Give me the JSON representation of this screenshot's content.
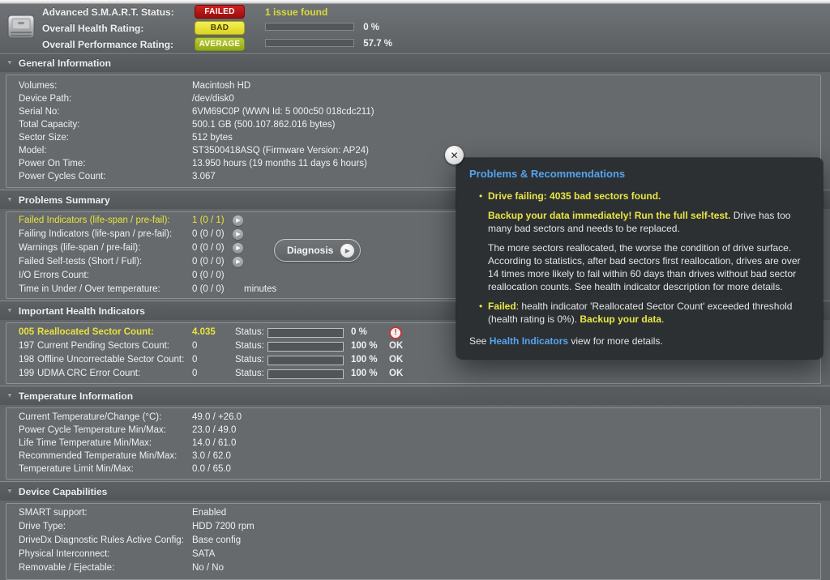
{
  "colors": {
    "failed_red": "#b01116",
    "bad_yellow": "#e6e33e",
    "average_green": "#9fb625",
    "ok_green": "#2cc42c",
    "warn_yellow": "#e8e23e",
    "link_blue": "#57a3f0"
  },
  "icons": {
    "disclosure": "▼",
    "arrow_right": "▶",
    "close": "✕",
    "alert": "!",
    "bullet": "•"
  },
  "topbar": {
    "rows": [
      {
        "label": "Advanced S.M.A.R.T. Status:",
        "badge": "FAILED",
        "extra": "1 issue found"
      },
      {
        "label": "Overall Health Rating:",
        "badge": "BAD",
        "pct": 0,
        "pct_label": "0 %"
      },
      {
        "label": "Overall Performance Rating:",
        "badge": "AVERAGE",
        "pct": 57.7,
        "pct_label": "57.7 %"
      }
    ]
  },
  "sections": {
    "general": {
      "title": "General Information",
      "rows": [
        {
          "label": "Volumes:",
          "value": "Macintosh HD"
        },
        {
          "label": "Device Path:",
          "value": "/dev/disk0"
        },
        {
          "label": "Serial No:",
          "value": "6VM69C0P (WWN Id: 5 000c50 018cdc211)"
        },
        {
          "label": "Total Capacity:",
          "value": "500.1 GB (500.107.862.016 bytes)"
        },
        {
          "label": "Sector Size:",
          "value": "512 bytes"
        },
        {
          "label": "Model:",
          "value": "ST3500418ASQ  (Firmware Version: AP24)"
        },
        {
          "label": "Power On Time:",
          "value": "13.950 hours (19 months 11 days 6 hours)"
        },
        {
          "label": "Power Cycles Count:",
          "value": "3.067"
        }
      ]
    },
    "problems": {
      "title": "Problems Summary",
      "diagnosis_label": "Diagnosis",
      "rows": [
        {
          "label": "Failed Indicators (life-span / pre-fail):",
          "value": "1 (0 / 1)",
          "suffix": ""
        },
        {
          "label": "Failing Indicators (life-span / pre-fail):",
          "value": "0 (0 / 0)",
          "suffix": ""
        },
        {
          "label": "Warnings (life-span / pre-fail):",
          "value": "0 (0 / 0)",
          "suffix": ""
        },
        {
          "label": "Failed Self-tests (Short / Full):",
          "value": "0 (0 / 0)",
          "suffix": ""
        },
        {
          "label": "I/O Errors Count:",
          "value": "0 (0 / 0)",
          "suffix": ""
        },
        {
          "label": "Time in Under / Over temperature:",
          "value": "0 (0 / 0)",
          "suffix": "minutes"
        }
      ]
    },
    "health": {
      "title": "Important Health Indicators",
      "status_label": "Status:",
      "rows": [
        {
          "id": "005",
          "name": "Reallocated Sector Count:",
          "value": "4.035",
          "pct": 0,
          "pct_label": "0 %",
          "status": ""
        },
        {
          "id": "197",
          "name": "Current Pending Sectors Count:",
          "value": "0",
          "pct": 100,
          "pct_label": "100 %",
          "status": "OK"
        },
        {
          "id": "198",
          "name": "Offline Uncorrectable Sector Count:",
          "value": "0",
          "pct": 100,
          "pct_label": "100 %",
          "status": "OK"
        },
        {
          "id": "199",
          "name": "UDMA CRC Error Count:",
          "value": "0",
          "pct": 100,
          "pct_label": "100 %",
          "status": "OK"
        }
      ]
    },
    "temperature": {
      "title": "Temperature Information",
      "rows": [
        {
          "label": "Current Temperature/Change (°C):",
          "value": "49.0 / +26.0"
        },
        {
          "label": "Power Cycle Temperature Min/Max:",
          "value": "23.0 / 49.0"
        },
        {
          "label": "Life Time Temperature Min/Max:",
          "value": "14.0 / 61.0"
        },
        {
          "label": "Recommended Temperature Min/Max:",
          "value": "3.0   / 62.0"
        },
        {
          "label": "Temperature Limit Min/Max:",
          "value": "0.0   / 65.0"
        }
      ]
    },
    "capabilities": {
      "title": "Device Capabilities",
      "rows": [
        {
          "label": "SMART support:",
          "value": "Enabled"
        },
        {
          "label": "Drive Type:",
          "value": "HDD 7200 rpm"
        },
        {
          "label": "DriveDx Diagnostic Rules Active Config:",
          "value": "Base config"
        },
        {
          "label": "Physical Interconnect:",
          "value": "SATA"
        },
        {
          "label": "Removable / Ejectable:",
          "value": "No / No"
        }
      ]
    }
  },
  "popover": {
    "title": "Problems & Recommendations",
    "bullet1": "Drive failing: 4035 bad sectors found.",
    "para1_strong": "Backup your data immediately! Run the full self-test.",
    "para1_rest": " Drive has too many bad sectors and needs to be replaced.",
    "para2": "The more sectors reallocated, the worse the condition of drive surface. According to statistics, after bad sectors first reallocation, drives are over 14 times more likely to fail within 60 days than drives without bad sector reallocation counts. See health indicator description for more details.",
    "bullet2_strong": "Failed",
    "bullet2_mid": ": health indicator 'Reallocated Sector Count' exceeded threshold (health rating is 0%). ",
    "bullet2_strong2": "Backup your data",
    "bullet2_end": ".",
    "footer_pre": "See ",
    "footer_link": "Health Indicators",
    "footer_post": " view for more details."
  }
}
